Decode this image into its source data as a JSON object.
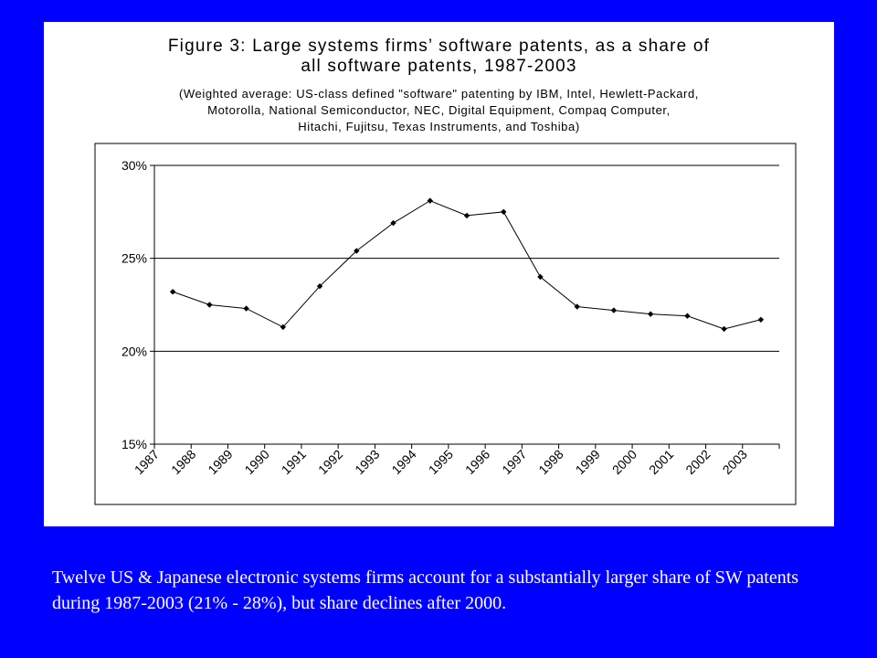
{
  "slide": {
    "background_color": "#0000FF",
    "caption": "Twelve US & Japanese electronic systems firms account for a substantially larger share of SW patents during 1987-2003 (21% - 28%), but share declines after 2000."
  },
  "figure": {
    "title_line1": "Figure 3:  Large systems firms’ software patents, as a share of",
    "title_line2": "all software patents, 1987-2003",
    "subtitle": "(Weighted average:  US-class defined \"software\" patenting by IBM, Intel, Hewlett-Packard,\nMotorolla, National Semiconductor, NEC, Digital Equipment, Compaq Computer,\nHitachi, Fujitsu, Texas Instruments, and Toshiba)"
  },
  "chart_data": {
    "type": "line",
    "title": "Figure 3:  Large systems firms’ software patents, as a share of all software patents, 1987-2003",
    "xlabel": "",
    "ylabel": "",
    "categories": [
      "1987",
      "1988",
      "1989",
      "1990",
      "1991",
      "1992",
      "1993",
      "1994",
      "1995",
      "1996",
      "1997",
      "1998",
      "1999",
      "2000",
      "2001",
      "2002",
      "2003"
    ],
    "series": [
      {
        "values": [
          23.2,
          22.5,
          22.3,
          21.3,
          23.5,
          25.4,
          26.9,
          28.1,
          27.3,
          27.5,
          24.0,
          22.4,
          22.2,
          22.0,
          21.9,
          21.2,
          21.7
        ]
      }
    ],
    "ylim": [
      15,
      30
    ],
    "yticks": [
      15,
      20,
      25,
      30
    ],
    "ytick_labels": [
      "15%",
      "20%",
      "25%",
      "30%"
    ],
    "grid": true,
    "gridlines_y": [
      20,
      25,
      30
    ],
    "line_color": "#000000",
    "marker": "diamond"
  }
}
